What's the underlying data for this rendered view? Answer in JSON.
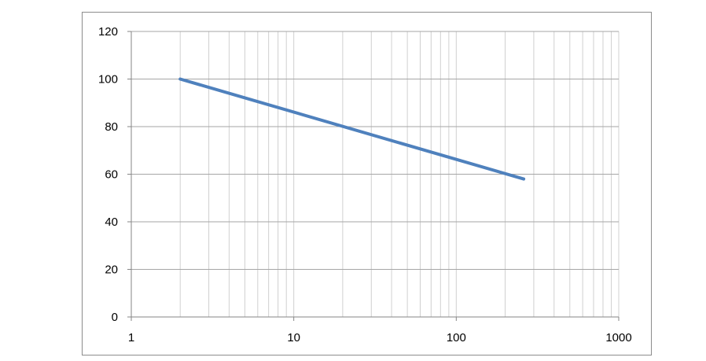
{
  "chart_data": {
    "type": "line",
    "title": "",
    "xlabel": "",
    "ylabel": "",
    "x_scale": "log",
    "xlim": [
      1,
      1000
    ],
    "ylim": [
      0,
      120
    ],
    "x_ticks": [
      1,
      10,
      100,
      1000
    ],
    "x_tick_labels": [
      "1",
      "10",
      "100",
      "1000"
    ],
    "y_ticks": [
      0,
      20,
      40,
      60,
      80,
      100,
      120
    ],
    "y_tick_labels": [
      "0",
      "20",
      "40",
      "60",
      "80",
      "100",
      "120"
    ],
    "grid": true,
    "legend": "none",
    "series": [
      {
        "color": "#4f81bd",
        "x": [
          2,
          260
        ],
        "y": [
          100,
          58
        ]
      }
    ]
  }
}
